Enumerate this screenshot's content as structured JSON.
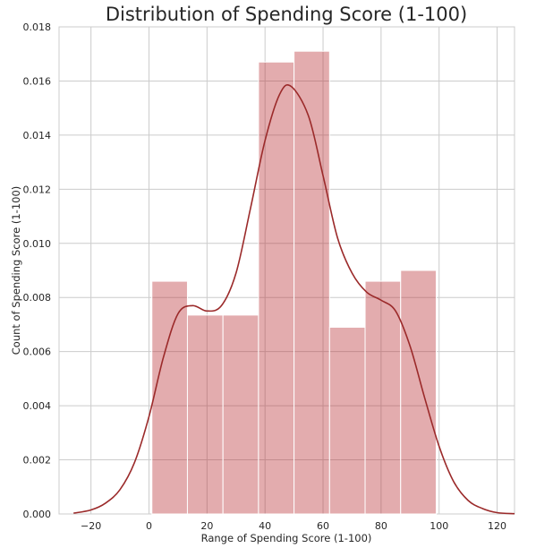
{
  "chart_data": {
    "type": "bar",
    "title": "Distribution of Spending Score (1-100)",
    "xlabel": "Range of Spending Score (1-100)",
    "ylabel": "Count of Spending Score (1-100)",
    "xlim": [
      -31,
      126
    ],
    "ylim": [
      0,
      0.018
    ],
    "xticks": [
      -20,
      0,
      20,
      40,
      60,
      80,
      100,
      120
    ],
    "yticks": [
      0.0,
      0.002,
      0.004,
      0.006,
      0.008,
      0.01,
      0.012,
      0.014,
      0.016,
      0.018
    ],
    "ytick_labels": [
      "0.000",
      "0.002",
      "0.004",
      "0.006",
      "0.008",
      "0.010",
      "0.012",
      "0.014",
      "0.016",
      "0.018"
    ],
    "grid": true,
    "histogram": {
      "bins": [
        {
          "x0": 1,
          "x1": 13.25,
          "value": 0.0086
        },
        {
          "x0": 13.25,
          "x1": 25.5,
          "value": 0.00735
        },
        {
          "x0": 25.5,
          "x1": 37.75,
          "value": 0.00735
        },
        {
          "x0": 37.75,
          "x1": 50,
          "value": 0.0167
        },
        {
          "x0": 50,
          "x1": 62.25,
          "value": 0.0171
        },
        {
          "x0": 62.25,
          "x1": 74.5,
          "value": 0.0069
        },
        {
          "x0": 74.5,
          "x1": 86.75,
          "value": 0.0086
        },
        {
          "x0": 86.75,
          "x1": 99,
          "value": 0.009
        }
      ],
      "color": "#b5262a",
      "opacity": 0.38
    },
    "kde": {
      "color": "#9b2a2a",
      "x": [
        -26,
        -20,
        -15,
        -10,
        -5,
        0,
        5,
        10,
        15,
        20,
        25,
        30,
        35,
        40,
        45,
        49,
        55,
        60,
        65,
        70,
        75,
        80,
        85,
        90,
        95,
        100,
        105,
        110,
        115,
        120,
        126
      ],
      "y": [
        3e-05,
        0.00015,
        0.0004,
        0.0009,
        0.0019,
        0.0036,
        0.0058,
        0.0074,
        0.0077,
        0.0075,
        0.0077,
        0.0089,
        0.0113,
        0.0138,
        0.0155,
        0.0158,
        0.0147,
        0.0125,
        0.0102,
        0.0089,
        0.0082,
        0.0079,
        0.0075,
        0.0062,
        0.0043,
        0.0025,
        0.0012,
        0.0005,
        0.0002,
        5e-05,
        1e-05
      ]
    }
  }
}
